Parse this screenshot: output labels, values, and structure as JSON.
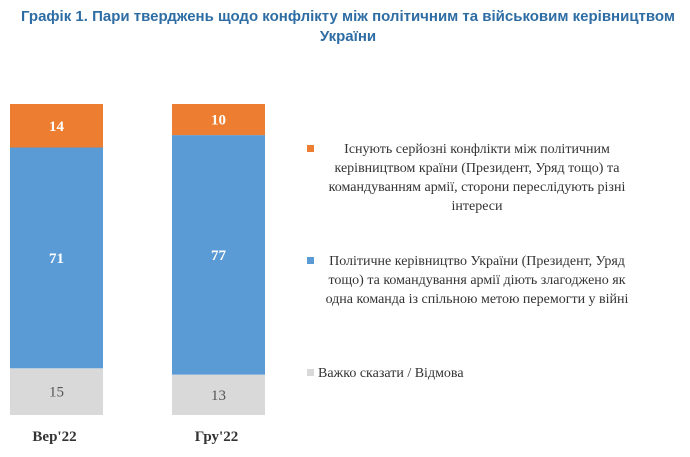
{
  "title": "Графік 1. Пари тверджень щодо конфлікту між політичним та військовим керівництвом України",
  "colors": {
    "conflict": "#ed7d31",
    "united": "#5b9bd5",
    "unsure": "#d9d9d9",
    "title": "#2e6da4"
  },
  "chart_data": {
    "type": "bar",
    "stacked": true,
    "orientation": "vertical",
    "categories": [
      "Вер'22",
      "Гру'22"
    ],
    "series": [
      {
        "name": "Важко сказати / Відмова",
        "values": [
          15,
          13
        ],
        "color": "#d9d9d9"
      },
      {
        "name": "Політичне керівництво України (Президент, Уряд тощо) та командування армії діють злагоджено як одна команда із спільною метою перемогти у війні",
        "values": [
          71,
          77
        ],
        "color": "#5b9bd5"
      },
      {
        "name": "Існують серйозні конфлікти між політичним керівництвом країни (Президент, Уряд тощо) та командуванням армії, сторони переслідують різні інтереси",
        "values": [
          14,
          10
        ],
        "color": "#ed7d31"
      }
    ],
    "ylim": [
      0,
      100
    ],
    "grid": false,
    "legend_position": "right"
  },
  "legend": [
    {
      "key": "conflict",
      "color": "#ed7d31",
      "label": "Існують серйозні конфлікти між політичним керівництвом країни (Президент, Уряд тощо) та командуванням армії, сторони переслідують різні інтереси"
    },
    {
      "key": "united",
      "color": "#5b9bd5",
      "label": "Політичне керівництво України (Президент, Уряд тощо) та командування армії діють злагоджено як одна команда із спільною метою перемогти у війні"
    },
    {
      "key": "unsure",
      "color": "#d9d9d9",
      "label": "Важко сказати / Відмова"
    }
  ]
}
